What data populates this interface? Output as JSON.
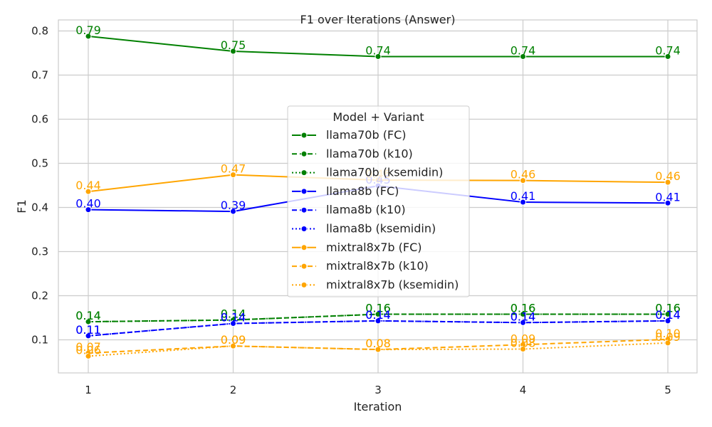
{
  "chart_data": {
    "type": "line",
    "title": "F1 over Iterations (Answer)",
    "xlabel": "Iteration",
    "ylabel": "F1",
    "x": [
      1,
      2,
      3,
      4,
      5
    ],
    "xticks": [
      "1",
      "2",
      "3",
      "4",
      "5"
    ],
    "yticks": [
      "0.1",
      "0.2",
      "0.3",
      "0.4",
      "0.5",
      "0.6",
      "0.7",
      "0.8"
    ],
    "ylim": [
      0.025,
      0.825
    ],
    "grid": true,
    "legend": {
      "title": "Model + Variant",
      "placement": "center"
    },
    "series": [
      {
        "name": "llama70b (FC)",
        "color": "#008000",
        "dash": "solid",
        "values": [
          0.788,
          0.754,
          0.742,
          0.742,
          0.742
        ],
        "labels": [
          "0.79",
          "0.75",
          "0.74",
          "0.74",
          "0.74"
        ]
      },
      {
        "name": "llama70b (k10)",
        "color": "#008000",
        "dash": "dashed",
        "values": [
          0.141,
          0.145,
          0.158,
          0.158,
          0.158
        ],
        "labels": [
          "0.14",
          "0.14",
          "0.16",
          "0.16",
          "0.16"
        ]
      },
      {
        "name": "llama70b (ksemidin)",
        "color": "#008000",
        "dash": "dotted",
        "values": [
          0.141,
          0.145,
          0.158,
          0.158,
          0.158
        ],
        "labels": [
          "0.14",
          "0.14",
          "0.16",
          "0.16",
          "0.16"
        ]
      },
      {
        "name": "llama8b (FC)",
        "color": "#0000ff",
        "dash": "solid",
        "values": [
          0.395,
          0.391,
          0.449,
          0.412,
          0.41
        ],
        "labels": [
          "0.40",
          "0.39",
          "0.45",
          "0.41",
          "0.41"
        ]
      },
      {
        "name": "llama8b (k10)",
        "color": "#0000ff",
        "dash": "dashed",
        "values": [
          0.109,
          0.137,
          0.143,
          0.139,
          0.143
        ],
        "labels": [
          "0.11",
          "0.14",
          "0.14",
          "0.14",
          "0.14"
        ]
      },
      {
        "name": "llama8b (ksemidin)",
        "color": "#0000ff",
        "dash": "dotted",
        "values": [
          0.109,
          0.137,
          0.143,
          0.139,
          0.143
        ],
        "labels": [
          "0.11",
          "0.14",
          "0.14",
          "0.14",
          "0.14"
        ]
      },
      {
        "name": "mixtral8x7b (FC)",
        "color": "#ffa500",
        "dash": "solid",
        "values": [
          0.436,
          0.474,
          0.462,
          0.461,
          0.457
        ],
        "labels": [
          "0.44",
          "0.47",
          "0.46",
          "0.46",
          "0.46"
        ]
      },
      {
        "name": "mixtral8x7b (k10)",
        "color": "#ffa500",
        "dash": "dashed",
        "values": [
          0.07,
          0.086,
          0.078,
          0.089,
          0.101
        ],
        "labels": [
          "0.07",
          "0.09",
          "0.08",
          "0.09",
          "0.10"
        ]
      },
      {
        "name": "mixtral8x7b (ksemidin)",
        "color": "#ffa500",
        "dash": "dotted",
        "values": [
          0.063,
          0.086,
          0.078,
          0.079,
          0.093
        ],
        "labels": [
          "0.06",
          "0.09",
          "0.08",
          "0.08",
          "0.09"
        ]
      }
    ]
  }
}
